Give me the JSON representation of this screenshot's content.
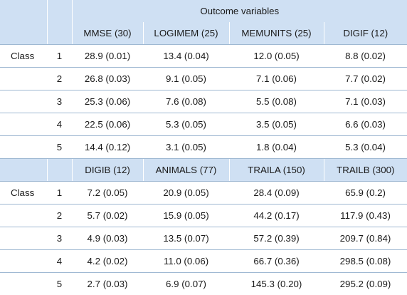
{
  "table": {
    "title": "Outcome variables",
    "row_label": "Class",
    "block1": {
      "headers": [
        "MMSE (30)",
        "LOGIMEM (25)",
        "MEMUNITS (25)",
        "DIGIF (12)"
      ],
      "rows": [
        {
          "cls": "1",
          "cells": [
            "28.9 (0.01)",
            "13.4 (0.04)",
            "12.0 (0.05)",
            "8.8 (0.02)"
          ]
        },
        {
          "cls": "2",
          "cells": [
            "26.8 (0.03)",
            "9.1 (0.05)",
            "7.1 (0.06)",
            "7.7 (0.02)"
          ]
        },
        {
          "cls": "3",
          "cells": [
            "25.3 (0.06)",
            "7.6 (0.08)",
            "5.5 (0.08)",
            "7.1 (0.03)"
          ]
        },
        {
          "cls": "4",
          "cells": [
            "22.5 (0.06)",
            "5.3 (0.05)",
            "3.5 (0.05)",
            "6.6 (0.03)"
          ]
        },
        {
          "cls": "5",
          "cells": [
            "14.4 (0.12)",
            "3.1 (0.05)",
            "1.8 (0.04)",
            "5.3 (0.04)"
          ]
        }
      ]
    },
    "block2": {
      "headers": [
        "DIGIB (12)",
        "ANIMALS (77)",
        "TRAILA (150)",
        "TRAILB (300)"
      ],
      "rows": [
        {
          "cls": "1",
          "cells": [
            "7.2 (0.05)",
            "20.9 (0.05)",
            "28.4 (0.09)",
            "65.9 (0.2)"
          ]
        },
        {
          "cls": "2",
          "cells": [
            "5.7 (0.02)",
            "15.9 (0.05)",
            "44.2 (0.17)",
            "117.9 (0.43)"
          ]
        },
        {
          "cls": "3",
          "cells": [
            "4.9 (0.03)",
            "13.5 (0.07)",
            "57.2 (0.39)",
            "209.7 (0.84)"
          ]
        },
        {
          "cls": "4",
          "cells": [
            "4.2 (0.02)",
            "11.0 (0.06)",
            "66.7 (0.36)",
            "298.5 (0.08)"
          ]
        },
        {
          "cls": "5",
          "cells": [
            "2.7 (0.03)",
            "6.9 (0.07)",
            "145.3 (0.20)",
            "295.2 (0.09)"
          ]
        }
      ]
    }
  }
}
